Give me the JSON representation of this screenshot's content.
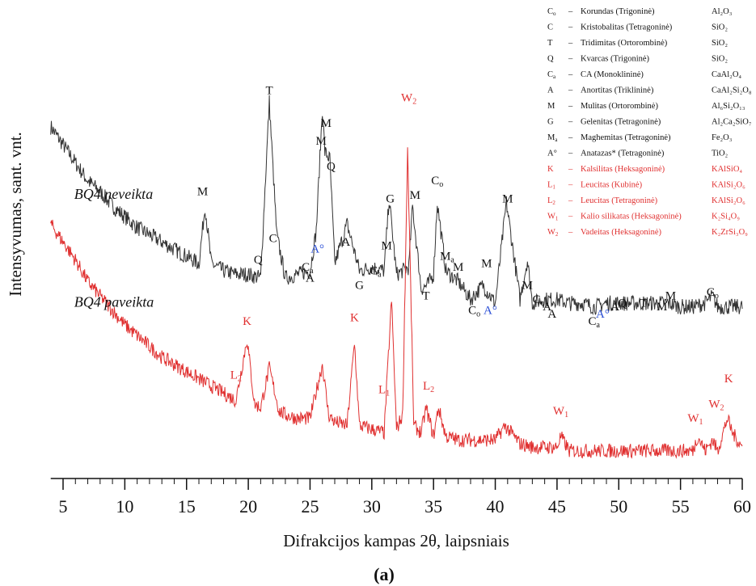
{
  "chart_data": {
    "type": "line",
    "title": "",
    "xlabel": "Difrakcijos kampas 2θ, laipsniais",
    "ylabel": "Intensyvumas, sant. vnt.",
    "panel_label": "(a)",
    "xlim": [
      4,
      60
    ],
    "x_ticks": [
      5,
      10,
      15,
      20,
      25,
      30,
      35,
      40,
      45,
      50,
      55,
      60
    ],
    "y_ticks": [],
    "grid": false,
    "legend_position": "top-right",
    "series": [
      {
        "name": "BQ4 neveikta",
        "color": "#333333",
        "x": [
          4,
          5,
          6,
          7,
          8,
          9,
          10,
          11,
          12,
          13,
          14,
          15,
          16,
          16.5,
          17,
          18,
          19,
          20,
          21,
          21.7,
          22.3,
          23,
          24,
          25,
          25.5,
          26,
          26.2,
          26.6,
          27,
          28,
          29,
          30,
          31,
          31.4,
          32,
          33,
          33.3,
          34,
          34.5,
          35,
          35.3,
          36,
          37,
          38,
          39,
          40,
          40.9,
          42,
          42.6,
          43,
          44,
          45,
          46,
          47,
          48,
          49,
          50,
          51,
          52,
          53,
          54,
          55,
          56,
          57,
          57.6,
          58,
          59,
          60
        ],
        "y": [
          9.5,
          9.0,
          8.5,
          8.0,
          7.7,
          7.3,
          7.0,
          6.7,
          6.5,
          6.3,
          6.1,
          5.9,
          5.7,
          7.3,
          5.7,
          5.5,
          5.4,
          5.4,
          5.3,
          10.2,
          6.5,
          5.3,
          5.4,
          5.5,
          6.6,
          10.0,
          8.8,
          8.6,
          5.7,
          6.8,
          5.5,
          5.6,
          5.5,
          7.5,
          5.4,
          5.6,
          7.3,
          5.0,
          5.1,
          5.4,
          7.4,
          5.5,
          5.2,
          4.7,
          5.1,
          4.6,
          7.4,
          4.7,
          5.8,
          4.6,
          4.7,
          4.7,
          4.6,
          4.6,
          4.5,
          4.6,
          4.6,
          4.6,
          4.6,
          4.6,
          4.6,
          4.5,
          4.5,
          4.6,
          4.8,
          4.5,
          4.5,
          4.5
        ]
      },
      {
        "name": "BQ4 paveikta",
        "color": "#e03030",
        "x": [
          4,
          5,
          6,
          7,
          8,
          9,
          10,
          11,
          12,
          13,
          14,
          15,
          16,
          17,
          18,
          19,
          19.9,
          20.5,
          21,
          21.7,
          22.5,
          23,
          24,
          25,
          26,
          26.5,
          27,
          28,
          28.6,
          29,
          30,
          31,
          31.6,
          32,
          32.5,
          32.9,
          33.4,
          34,
          34.4,
          35,
          35.4,
          36,
          37,
          38,
          39,
          40,
          40.8,
          42,
          43,
          44,
          45,
          45.3,
          46,
          47,
          48,
          49,
          50,
          51,
          52,
          53,
          54,
          55,
          56,
          56.4,
          57,
          57.6,
          58,
          58.8,
          59.2,
          60
        ],
        "y": [
          6.8,
          6.3,
          5.8,
          5.2,
          4.8,
          4.4,
          4.0,
          3.7,
          3.4,
          3.1,
          2.9,
          2.7,
          2.5,
          2.3,
          2.1,
          1.9,
          3.6,
          1.8,
          1.7,
          2.8,
          1.6,
          1.5,
          1.4,
          1.4,
          2.9,
          1.5,
          1.3,
          1.2,
          3.5,
          1.2,
          1.1,
          1.0,
          4.7,
          1.1,
          1.5,
          8.9,
          1.2,
          1.0,
          1.7,
          0.9,
          1.7,
          0.9,
          0.8,
          0.8,
          0.8,
          0.8,
          1.2,
          0.7,
          0.6,
          0.6,
          0.6,
          0.9,
          0.5,
          0.5,
          0.5,
          0.5,
          0.5,
          0.5,
          0.5,
          0.5,
          0.5,
          0.5,
          0.5,
          0.9,
          0.5,
          0.8,
          0.5,
          1.4,
          1.0,
          0.6
        ]
      }
    ],
    "series_labels": [
      {
        "text": "BQ4 neveikta",
        "x": 5.9,
        "y": 7.5
      },
      {
        "text": "BQ4 paveikta",
        "x": 5.9,
        "y": 4.5
      }
    ],
    "peak_labels_black": [
      {
        "text": "M",
        "x": 16.3,
        "y": 7.6
      },
      {
        "text": "Q",
        "x": 20.8,
        "y": 5.7
      },
      {
        "text": "T",
        "x": 21.7,
        "y": 10.4
      },
      {
        "text": "C",
        "x": 22.0,
        "y": 6.3
      },
      {
        "text": "C",
        "sub": "a",
        "x": 24.8,
        "y": 5.5
      },
      {
        "text": "A",
        "x": 25.0,
        "y": 5.2
      },
      {
        "text": "M",
        "x": 25.9,
        "y": 9.0
      },
      {
        "text": "M",
        "x": 26.3,
        "y": 9.5
      },
      {
        "text": "Q",
        "x": 26.7,
        "y": 8.3
      },
      {
        "text": "A",
        "x": 27.9,
        "y": 6.2
      },
      {
        "text": "G",
        "x": 29.0,
        "y": 5.0
      },
      {
        "text": "C",
        "sub": "a",
        "x": 30.3,
        "y": 5.4
      },
      {
        "text": "M",
        "x": 31.2,
        "y": 6.1
      },
      {
        "text": "G",
        "x": 31.5,
        "y": 7.4
      },
      {
        "text": "M",
        "x": 33.5,
        "y": 7.5
      },
      {
        "text": "C",
        "sub": "o",
        "x": 35.3,
        "y": 7.9
      },
      {
        "text": "T",
        "x": 34.4,
        "y": 4.7
      },
      {
        "text": "M",
        "sub": "a",
        "x": 36.1,
        "y": 5.8
      },
      {
        "text": "M",
        "x": 37.0,
        "y": 5.5
      },
      {
        "text": "C",
        "sub": "o",
        "x": 38.3,
        "y": 4.3
      },
      {
        "text": "M",
        "x": 39.3,
        "y": 5.6
      },
      {
        "text": "M",
        "x": 41.0,
        "y": 7.4
      },
      {
        "text": "M",
        "x": 42.6,
        "y": 5.0
      },
      {
        "text": "C",
        "sub": "o",
        "x": 43.5,
        "y": 4.6
      },
      {
        "text": "A",
        "x": 44.2,
        "y": 4.4
      },
      {
        "text": "A",
        "x": 44.6,
        "y": 4.2
      },
      {
        "text": "C",
        "sub": "a",
        "x": 48.0,
        "y": 4.0
      },
      {
        "text": "A",
        "x": 49.7,
        "y": 4.4
      },
      {
        "text": "Q",
        "x": 50.3,
        "y": 4.5
      },
      {
        "text": "T",
        "x": 52.0,
        "y": 4.5
      },
      {
        "text": "M",
        "x": 53.5,
        "y": 4.4
      },
      {
        "text": "M",
        "x": 54.2,
        "y": 4.7
      },
      {
        "text": "C",
        "sub": "o",
        "x": 57.6,
        "y": 4.8
      }
    ],
    "peak_labels_blue": [
      {
        "text": "A°",
        "x": 25.6,
        "y": 6.0
      },
      {
        "text": "A°",
        "x": 39.6,
        "y": 4.3
      },
      {
        "text": "A°",
        "x": 48.7,
        "y": 4.2
      }
    ],
    "peak_labels_red": [
      {
        "text": "W",
        "sub": "2",
        "x": 33.0,
        "y": 10.2
      },
      {
        "text": "K",
        "x": 19.9,
        "y": 4.0
      },
      {
        "text": "K",
        "x": 28.6,
        "y": 4.1
      },
      {
        "text": "L",
        "sub": "2",
        "x": 19.0,
        "y": 2.5
      },
      {
        "text": "L",
        "sub": "1",
        "x": 31.0,
        "y": 2.1
      },
      {
        "text": "L",
        "sub": "2",
        "x": 34.6,
        "y": 2.2
      },
      {
        "text": "W",
        "sub": "1",
        "x": 45.3,
        "y": 1.5
      },
      {
        "text": "W",
        "sub": "1",
        "x": 56.2,
        "y": 1.3
      },
      {
        "text": "W",
        "sub": "2",
        "x": 57.9,
        "y": 1.7
      },
      {
        "text": "K",
        "x": 58.9,
        "y": 2.4
      }
    ],
    "legend": [
      {
        "sym": "C",
        "sub": "o",
        "name": "Korundas (Trigoninė)",
        "formula": "Al₂O₃",
        "color": "#111111"
      },
      {
        "sym": "C",
        "sub": "",
        "name": "Kristobalitas (Tetragoninė)",
        "formula": "SiO₂",
        "color": "#111111"
      },
      {
        "sym": "T",
        "sub": "",
        "name": "Tridimitas (Ortorombinė)",
        "formula": "SiO₂",
        "color": "#111111"
      },
      {
        "sym": "Q",
        "sub": "",
        "name": "Kvarcas (Trigoninė)",
        "formula": "SiO₂",
        "color": "#111111"
      },
      {
        "sym": "C",
        "sub": "a",
        "name": "CA (Monoklininė)",
        "formula": "CaAl₂O₄",
        "color": "#111111"
      },
      {
        "sym": "A",
        "sub": "",
        "name": "Anortitas (Triklininė)",
        "formula": "CaAl₂Si₂O₈",
        "color": "#111111"
      },
      {
        "sym": "M",
        "sub": "",
        "name": "Mulitas (Ortorombinė)",
        "formula": "Al₆Si₂O₁₃",
        "color": "#111111"
      },
      {
        "sym": "G",
        "sub": "",
        "name": "Gelenitas (Tetragoninė)",
        "formula": "Al₂Ca₂SiO₇",
        "color": "#111111"
      },
      {
        "sym": "M",
        "sub": "a",
        "name": "Maghemitas (Tetragoninė)",
        "formula": "Fe₂O₃",
        "color": "#111111"
      },
      {
        "sym": "A°",
        "sub": "",
        "name": "Anatazas* (Tetragoninė)",
        "formula": "TiO₂",
        "color": "#111111"
      },
      {
        "sym": "K",
        "sub": "",
        "name": "Kalsilitas (Heksagoninė)",
        "formula": "KAlSiO₄",
        "color": "#e03030"
      },
      {
        "sym": "L",
        "sub": "1",
        "name": "Leucitas (Kubinė)",
        "formula": "KAlSi₂O₆",
        "color": "#e03030"
      },
      {
        "sym": "L",
        "sub": "2",
        "name": "Leucitas (Tetragoninė)",
        "formula": "KAlSi₂O₆",
        "color": "#e03030"
      },
      {
        "sym": "W",
        "sub": "1",
        "name": "Kalio silikatas (Heksagoninė)",
        "formula": "K₂Si₄O₉",
        "color": "#e03030"
      },
      {
        "sym": "W",
        "sub": "2",
        "name": "Vadeitas (Heksagoninė)",
        "formula": "K₂ZrSi₃O₉",
        "color": "#e03030"
      }
    ],
    "legend_dash": "–",
    "colors": {
      "black": "#333333",
      "red": "#e03030",
      "blue": "#2b4fd6"
    }
  }
}
